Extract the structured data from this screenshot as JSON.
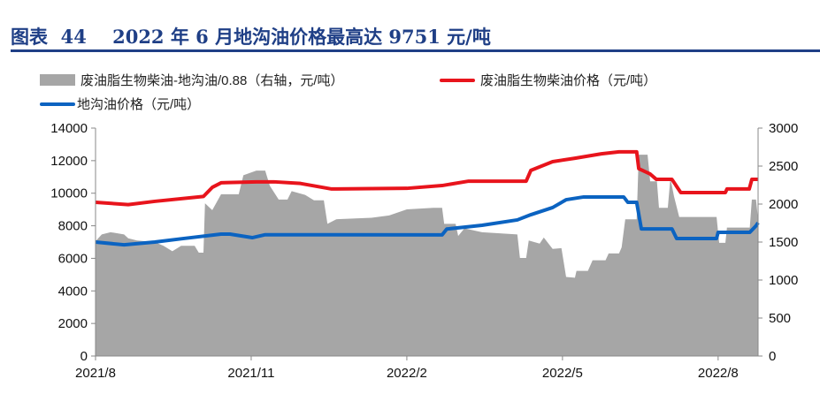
{
  "title": "图表  44    2022 年 6 月地沟油价格最高达 9751 元/吨",
  "colors": {
    "gray": "#a6a6a6",
    "red": "#e8141c",
    "blue": "#0b63c1",
    "title": "#1f3f86"
  },
  "chart_data": {
    "type": "line",
    "title": "2022年6月地沟油价格最高达9751元/吨",
    "x_unit": "months since 2021/8",
    "xlim": [
      0,
      12.77
    ],
    "xticks": [
      {
        "x": 0,
        "label": "2021/8"
      },
      {
        "x": 3,
        "label": "2021/11"
      },
      {
        "x": 6,
        "label": "2022/2"
      },
      {
        "x": 9,
        "label": "2022/5"
      },
      {
        "x": 12,
        "label": "2022/8"
      }
    ],
    "ylim_left": [
      0,
      14000
    ],
    "yticks_left": [
      "0",
      "2000",
      "4000",
      "6000",
      "8000",
      "10000",
      "12000",
      "14000"
    ],
    "ylim_right": [
      0,
      3000
    ],
    "yticks_right": [
      "0",
      "500",
      "1000",
      "1500",
      "2000",
      "2500",
      "3000"
    ],
    "legend_position": "top",
    "series": [
      {
        "name": "废油脂生物柴油-地沟油/0.88（右轴，元/吨）",
        "type": "area",
        "axis": "right",
        "color": "#a6a6a6",
        "points": [
          [
            0,
            1510
          ],
          [
            0.12,
            1600
          ],
          [
            0.29,
            1630
          ],
          [
            0.55,
            1600
          ],
          [
            0.63,
            1550
          ],
          [
            0.8,
            1520
          ],
          [
            1.14,
            1500
          ],
          [
            1.31,
            1450
          ],
          [
            1.48,
            1380
          ],
          [
            1.65,
            1450
          ],
          [
            1.91,
            1450
          ],
          [
            1.99,
            1360
          ],
          [
            2.08,
            1360
          ],
          [
            2.11,
            2010
          ],
          [
            2.25,
            1920
          ],
          [
            2.42,
            2130
          ],
          [
            2.76,
            2130
          ],
          [
            2.85,
            2380
          ],
          [
            3.1,
            2440
          ],
          [
            3.27,
            2440
          ],
          [
            3.36,
            2240
          ],
          [
            3.53,
            2060
          ],
          [
            3.7,
            2060
          ],
          [
            3.78,
            2170
          ],
          [
            4.04,
            2120
          ],
          [
            4.21,
            2050
          ],
          [
            4.4,
            2050
          ],
          [
            4.47,
            1740
          ],
          [
            4.64,
            1800
          ],
          [
            5.32,
            1820
          ],
          [
            5.66,
            1850
          ],
          [
            6.0,
            1930
          ],
          [
            6.51,
            1950
          ],
          [
            6.68,
            1950
          ],
          [
            6.72,
            1740
          ],
          [
            6.94,
            1740
          ],
          [
            6.99,
            1580
          ],
          [
            7.11,
            1680
          ],
          [
            7.45,
            1630
          ],
          [
            8.13,
            1600
          ],
          [
            8.18,
            1290
          ],
          [
            8.3,
            1290
          ],
          [
            8.35,
            1520
          ],
          [
            8.56,
            1480
          ],
          [
            8.64,
            1560
          ],
          [
            8.81,
            1410
          ],
          [
            8.98,
            1420
          ],
          [
            9.07,
            1040
          ],
          [
            9.24,
            1030
          ],
          [
            9.27,
            1120
          ],
          [
            9.49,
            1120
          ],
          [
            9.58,
            1260
          ],
          [
            9.83,
            1260
          ],
          [
            9.89,
            1350
          ],
          [
            10.09,
            1350
          ],
          [
            10.14,
            1430
          ],
          [
            10.21,
            1800
          ],
          [
            10.43,
            1800
          ],
          [
            10.47,
            2650
          ],
          [
            10.64,
            2650
          ],
          [
            10.69,
            2300
          ],
          [
            10.82,
            2300
          ],
          [
            10.86,
            1950
          ],
          [
            11.03,
            1950
          ],
          [
            11.08,
            2340
          ],
          [
            11.15,
            2100
          ],
          [
            11.25,
            1830
          ],
          [
            11.97,
            1830
          ],
          [
            12.02,
            1490
          ],
          [
            12.14,
            1490
          ],
          [
            12.17,
            1690
          ],
          [
            12.61,
            1690
          ],
          [
            12.65,
            2060
          ],
          [
            12.73,
            2060
          ],
          [
            12.77,
            1800
          ]
        ]
      },
      {
        "name": "废油脂生物柴油价格（元/吨）",
        "type": "line",
        "axis": "left",
        "color": "#e8141c",
        "points": [
          [
            0,
            9440
          ],
          [
            0.63,
            9300
          ],
          [
            1.14,
            9500
          ],
          [
            2.08,
            9800
          ],
          [
            2.25,
            10360
          ],
          [
            2.42,
            10640
          ],
          [
            3.1,
            10700
          ],
          [
            3.44,
            10700
          ],
          [
            3.95,
            10600
          ],
          [
            4.55,
            10260
          ],
          [
            6.0,
            10300
          ],
          [
            6.68,
            10470
          ],
          [
            7.19,
            10740
          ],
          [
            8.3,
            10740
          ],
          [
            8.39,
            11400
          ],
          [
            8.81,
            11940
          ],
          [
            9.24,
            12150
          ],
          [
            9.75,
            12420
          ],
          [
            10.09,
            12540
          ],
          [
            10.43,
            12540
          ],
          [
            10.47,
            11510
          ],
          [
            10.69,
            11180
          ],
          [
            10.81,
            10850
          ],
          [
            11.11,
            10850
          ],
          [
            11.28,
            10040
          ],
          [
            12.14,
            10040
          ],
          [
            12.17,
            10260
          ],
          [
            12.6,
            10260
          ],
          [
            12.65,
            10850
          ],
          [
            12.77,
            10850
          ]
        ]
      },
      {
        "name": "地沟油价格（元/吨）",
        "type": "line",
        "axis": "left",
        "color": "#0b63c1",
        "points": [
          [
            0,
            7000
          ],
          [
            0.55,
            6830
          ],
          [
            1.14,
            7000
          ],
          [
            1.65,
            7200
          ],
          [
            2.42,
            7490
          ],
          [
            2.59,
            7490
          ],
          [
            3.02,
            7270
          ],
          [
            3.27,
            7450
          ],
          [
            6.68,
            7440
          ],
          [
            6.77,
            7800
          ],
          [
            7.45,
            8030
          ],
          [
            8.13,
            8360
          ],
          [
            8.39,
            8680
          ],
          [
            8.81,
            9120
          ],
          [
            9.07,
            9600
          ],
          [
            9.41,
            9770
          ],
          [
            10.18,
            9770
          ],
          [
            10.26,
            9440
          ],
          [
            10.43,
            9440
          ],
          [
            10.52,
            7810
          ],
          [
            11.11,
            7810
          ],
          [
            11.2,
            7220
          ],
          [
            11.97,
            7220
          ],
          [
            12.0,
            7600
          ],
          [
            12.61,
            7600
          ],
          [
            12.73,
            8000
          ],
          [
            12.77,
            8190
          ]
        ]
      }
    ]
  }
}
